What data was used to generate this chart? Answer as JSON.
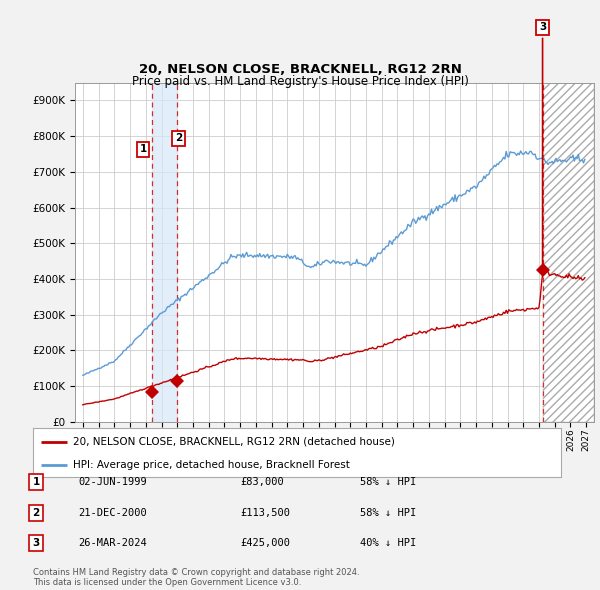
{
  "title": "20, NELSON CLOSE, BRACKNELL, RG12 2RN",
  "subtitle": "Price paid vs. HM Land Registry's House Price Index (HPI)",
  "hpi_color": "#5b9bd5",
  "price_color": "#c00000",
  "background_color": "#f2f2f2",
  "plot_background": "#ffffff",
  "ylim": [
    0,
    950000
  ],
  "yticks": [
    0,
    100000,
    200000,
    300000,
    400000,
    500000,
    600000,
    700000,
    800000,
    900000
  ],
  "xlim_start": 1994.5,
  "xlim_end": 2027.5,
  "legend_label_price": "20, NELSON CLOSE, BRACKNELL, RG12 2RN (detached house)",
  "legend_label_hpi": "HPI: Average price, detached house, Bracknell Forest",
  "transactions": [
    {
      "date": 1999.42,
      "price": 83000,
      "label": "1"
    },
    {
      "date": 2000.97,
      "price": 113500,
      "label": "2"
    },
    {
      "date": 2024.23,
      "price": 425000,
      "label": "3"
    }
  ],
  "table_rows": [
    {
      "num": "1",
      "date": "02-JUN-1999",
      "price": "£83,000",
      "hpi": "58% ↓ HPI"
    },
    {
      "num": "2",
      "date": "21-DEC-2000",
      "price": "£113,500",
      "hpi": "58% ↓ HPI"
    },
    {
      "num": "3",
      "date": "26-MAR-2024",
      "price": "£425,000",
      "hpi": "40% ↓ HPI"
    }
  ],
  "footer": "Contains HM Land Registry data © Crown copyright and database right 2024.\nThis data is licensed under the Open Government Licence v3.0.",
  "shade1_x_start": 1999.42,
  "shade1_x_end": 2001.0,
  "shade2_x_start": 2024.23,
  "shade2_x_end": 2027.5
}
